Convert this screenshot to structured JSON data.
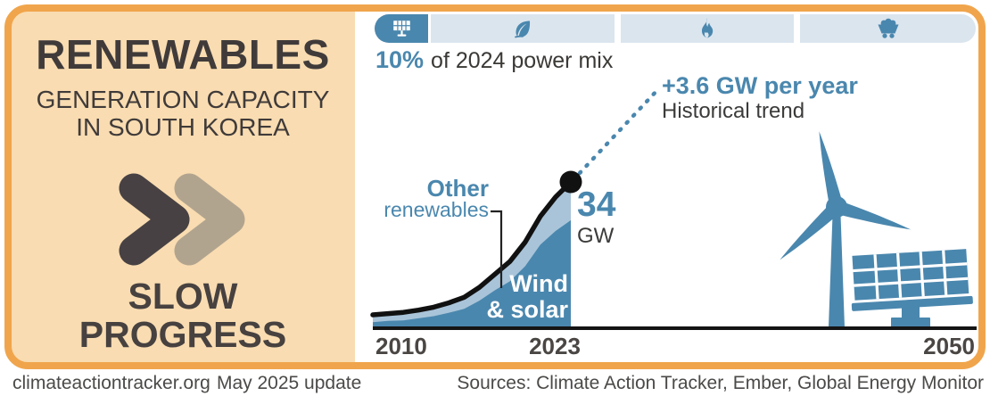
{
  "brand": {
    "site": "climateactiontracker.org",
    "update": "May 2025 update",
    "sources": "Sources: Climate Action Tracker, Ember, Global Energy Monitor"
  },
  "left_panel": {
    "title": "RENEWABLES",
    "subtitle_line1": "GENERATION CAPACITY",
    "subtitle_line2": "IN SOUTH KOREA",
    "verdict_line1": "SLOW",
    "verdict_line2": "PROGRESS",
    "chevron_icon": "double-chevron-right"
  },
  "power_mix": {
    "share": "10%",
    "caption": "of 2024 power mix",
    "segments": [
      {
        "icon": "solar-panel-icon",
        "active": true
      },
      {
        "icon": "leaf-icon",
        "active": false
      },
      {
        "icon": "flame-icon",
        "active": false
      },
      {
        "icon": "coal-cart-icon",
        "active": false
      }
    ]
  },
  "labels": {
    "other_renewables_line1": "Other",
    "other_renewables_line2": "renewables",
    "endpoint_value": "34",
    "endpoint_unit": "GW",
    "trend_title": "+3.6 GW per year",
    "trend_subtitle": "Historical trend",
    "area_label_line1": "Wind",
    "area_label_line2": "& solar",
    "tick_2010": "2010",
    "tick_2023": "2023",
    "tick_2050": "2050"
  },
  "illustrations": [
    "wind-turbine",
    "solar-panel-array"
  ],
  "colors": {
    "accent_blue": "#4a87ae",
    "light_blue_area": "#a9c4d9",
    "pale_blue_segment": "#dbe5ee",
    "orange_border": "#f0a54c",
    "peach_panel": "#f9dcb1",
    "dark_text": "#403b3a",
    "tan_chevron": "#b1a48f",
    "line_black": "#111111"
  },
  "chart_data": {
    "type": "area",
    "stacked": true,
    "title": "Renewables generation capacity in South Korea",
    "ylabel": "GW",
    "x": [
      2010,
      2011,
      2012,
      2013,
      2014,
      2015,
      2016,
      2017,
      2018,
      2019,
      2020,
      2021,
      2022,
      2023
    ],
    "series": [
      {
        "name": "Wind & solar",
        "values": [
          1.4,
          1.7,
          1.8,
          2.3,
          2.8,
          3.6,
          4.5,
          6.4,
          8.8,
          10.9,
          14.4,
          19.4,
          22.6,
          25.1
        ]
      },
      {
        "name": "Other renewables",
        "values": [
          1.7,
          1.7,
          1.9,
          1.9,
          2.1,
          2.3,
          2.7,
          3.1,
          3.7,
          4.6,
          5.6,
          6.6,
          7.9,
          8.9
        ]
      }
    ],
    "total_2023_gw": 34,
    "trend_gw_per_year": 3.6,
    "share_of_2024_power_mix_pct": 10,
    "xlim": [
      2010,
      2050
    ],
    "ylim": [
      0,
      36
    ],
    "x_ticks": [
      2010,
      2023,
      2050
    ],
    "grid": false,
    "legend": "inline-labels"
  }
}
